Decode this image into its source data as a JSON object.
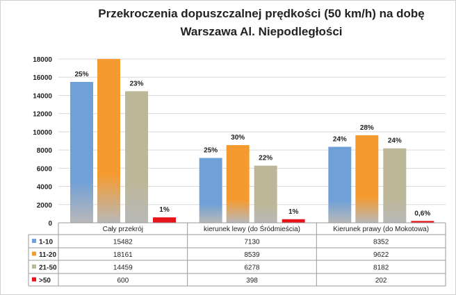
{
  "chart_data": {
    "type": "bar",
    "title": [
      "Przekroczenia dopuszczalnej prędkości (50 km/h) na dobę",
      "Warszawa Al. Niepodległości"
    ],
    "categories": [
      "Cały przekrój",
      "kierunek lewy (do Śródmieścia)",
      "Kierunek prawy (do Mokotowa)"
    ],
    "series": [
      {
        "name": "1-10",
        "color": "#6fa0d8",
        "values": [
          15482,
          7130,
          8352
        ],
        "labels": [
          "25%",
          "25%",
          "24%"
        ]
      },
      {
        "name": "11-20",
        "color": "#f59a2e",
        "values": [
          18161,
          8539,
          9622
        ],
        "labels": [
          "",
          "30%",
          "28%"
        ]
      },
      {
        "name": "21-50",
        "color": "#bdb79a",
        "values": [
          14459,
          6278,
          8182
        ],
        "labels": [
          "23%",
          "22%",
          "24%"
        ]
      },
      {
        "name": ">50",
        "color": "#e8141b",
        "values": [
          600,
          398,
          202
        ],
        "labels": [
          "1%",
          "1%",
          "0,6%"
        ]
      }
    ],
    "yticks": [
      0,
      2000,
      4000,
      6000,
      8000,
      10000,
      12000,
      14000,
      16000,
      18000
    ],
    "ylim": [
      0,
      18000
    ],
    "grid": true,
    "legend": "data-table"
  }
}
